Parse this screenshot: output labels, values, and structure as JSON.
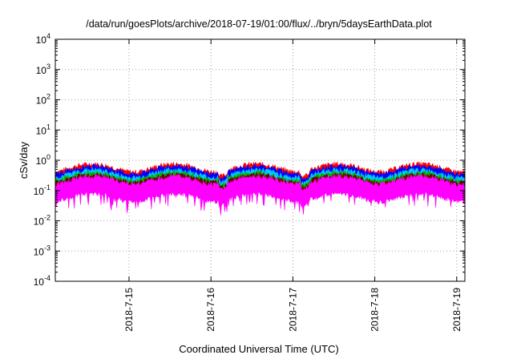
{
  "chart_data": {
    "type": "area",
    "title": "/data/run/goesPlots/archive/2018-07-19/01:00/flux/../bryn/5daysEarthData.plot",
    "xlabel": "Coordinated Universal Time (UTC)",
    "ylabel": "cSv/day",
    "yscale": "log",
    "ylim": [
      0.0001,
      10000
    ],
    "xlim_days": [
      14.1,
      19.1
    ],
    "grid": true,
    "legend": "none",
    "y_ticks": [
      {
        "value": 10000,
        "base": "10",
        "exp": "4"
      },
      {
        "value": 1000,
        "base": "10",
        "exp": "3"
      },
      {
        "value": 100,
        "base": "10",
        "exp": "2"
      },
      {
        "value": 10,
        "base": "10",
        "exp": "1"
      },
      {
        "value": 1,
        "base": "10",
        "exp": "0"
      },
      {
        "value": 0.1,
        "base": "10",
        "exp": "-1"
      },
      {
        "value": 0.01,
        "base": "10",
        "exp": "-2"
      },
      {
        "value": 0.001,
        "base": "10",
        "exp": "-3"
      },
      {
        "value": 0.0001,
        "base": "10",
        "exp": "-4"
      }
    ],
    "x_ticks": [
      {
        "label": "2018-7-15",
        "day": 15
      },
      {
        "label": "2018-7-16",
        "day": 16
      },
      {
        "label": "2018-7-17",
        "day": 17
      },
      {
        "label": "2018-7-18",
        "day": 18
      },
      {
        "label": "2018-7-19",
        "day": 19
      }
    ],
    "series": [
      {
        "color": "#ff0000",
        "max_level": 0.65,
        "min_level": 0.4
      },
      {
        "color": "#0000ff",
        "max_level": 0.55,
        "min_level": 0.33
      },
      {
        "color": "#00c8ff",
        "max_level": 0.42,
        "min_level": 0.3
      },
      {
        "color": "#00b000",
        "max_level": 0.34,
        "min_level": 0.27
      },
      {
        "color": "#6a0000",
        "max_level": 0.29,
        "min_level": 0.22
      },
      {
        "color": "#ff00ff",
        "max_level": 0.25,
        "min_level": 0.08
      }
    ]
  }
}
